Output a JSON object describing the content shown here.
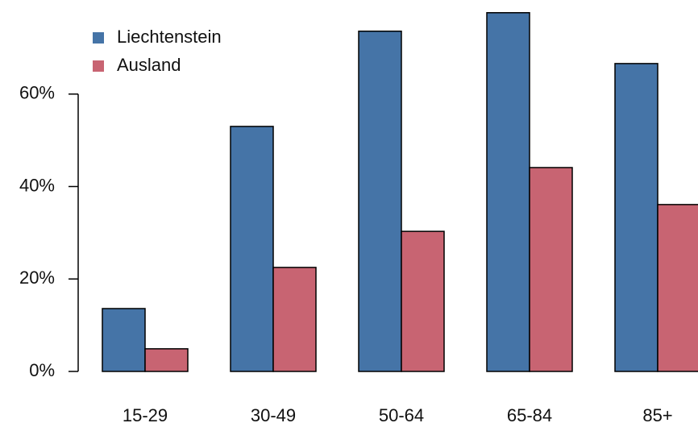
{
  "chart_data": {
    "type": "bar",
    "categories": [
      "15-29",
      "30-49",
      "50-64",
      "65-84",
      "85+"
    ],
    "series": [
      {
        "name": "Liechtenstein",
        "color": "#4574a7",
        "values": [
          13.6,
          53.0,
          73.6,
          77.6,
          66.6
        ]
      },
      {
        "name": "Ausland",
        "color": "#c86472",
        "values": [
          4.9,
          22.5,
          30.3,
          44.1,
          36.1
        ]
      }
    ],
    "ylim": [
      0,
      80
    ],
    "yticks": [
      {
        "value": 0,
        "label": "0%"
      },
      {
        "value": 20,
        "label": "20%"
      },
      {
        "value": 40,
        "label": "40%"
      },
      {
        "value": 60,
        "label": "60%"
      }
    ],
    "legend": "top-left"
  }
}
